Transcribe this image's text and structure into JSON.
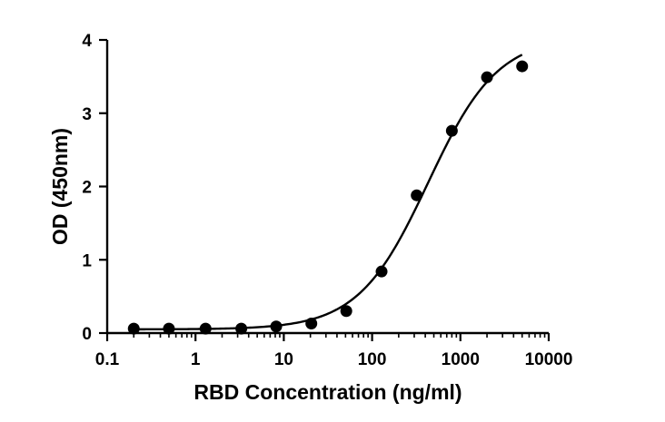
{
  "chart_data": {
    "type": "scatter",
    "title": "",
    "xlabel": "RBD Concentration (ng/ml)",
    "ylabel": "OD (450nm)",
    "xscale": "log",
    "xlim": [
      0.1,
      10000
    ],
    "ylim": [
      0,
      4
    ],
    "xticks": [
      0.1,
      1,
      10,
      100,
      1000,
      10000
    ],
    "xtick_labels": [
      "0.1",
      "1",
      "10",
      "100",
      "1000",
      "10000"
    ],
    "yticks": [
      0,
      1,
      2,
      3,
      4
    ],
    "ytick_labels": [
      "0",
      "1",
      "2",
      "3",
      "4"
    ],
    "grid": false,
    "points": [
      {
        "x": 0.2,
        "y": 0.06
      },
      {
        "x": 0.5,
        "y": 0.06
      },
      {
        "x": 1.3,
        "y": 0.06
      },
      {
        "x": 3.3,
        "y": 0.06
      },
      {
        "x": 8.2,
        "y": 0.09
      },
      {
        "x": 20.5,
        "y": 0.13
      },
      {
        "x": 51,
        "y": 0.3
      },
      {
        "x": 128,
        "y": 0.84
      },
      {
        "x": 320,
        "y": 1.88
      },
      {
        "x": 800,
        "y": 2.76
      },
      {
        "x": 2000,
        "y": 3.49
      },
      {
        "x": 5000,
        "y": 3.64
      }
    ],
    "fit": {
      "model": "four-parameter logistic",
      "bottom": 0.05,
      "top": 4.05,
      "ec50": 430,
      "hill": 1.1,
      "x_range": [
        0.2,
        5000
      ]
    }
  }
}
